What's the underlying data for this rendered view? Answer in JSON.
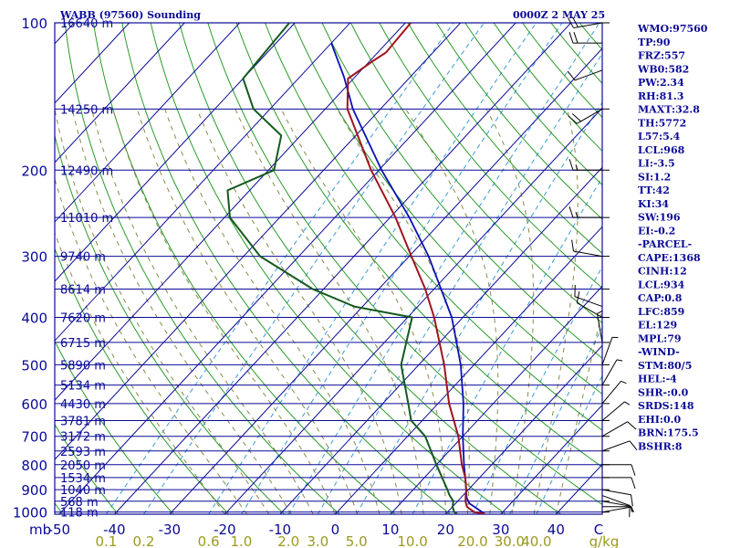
{
  "header": {
    "station": "WABB (97560) Sounding",
    "time": "0000Z  2 MAY 25"
  },
  "indices": [
    "WMO:97560",
    "TP:90",
    "FRZ:557",
    "WB0:582",
    "PW:2.34",
    "RH:81.3",
    "MAXT:32.8",
    "TH:5772",
    "L57:5.4",
    "LCL:968",
    "LI:-3.5",
    "SI:1.2",
    "TT:42",
    "KI:34",
    "SW:196",
    "EI:-0.2",
    "-PARCEL-",
    "CAPE:1368",
    "CINH:12",
    "LCL:934",
    "CAP:0.8",
    "LFC:859",
    "EL:129",
    "MPL:79",
    "-WIND-",
    "STM:80/5",
    "HEL:-4",
    "SHR-:0.0",
    "SRDS:148",
    "EHI:0.0",
    "BRN:175.5",
    "BSHR:8"
  ],
  "colors": {
    "text": "#0a0a96",
    "isobar": "#0a0a96",
    "isotherm": "#0a0a96",
    "dry_adiabat": "#2a9a2a",
    "moist_adiabat": "#8a8a4a",
    "mixing_ratio": "#3a9ad8",
    "temperature": "#a0141e",
    "dewpoint": "#145a1e",
    "parcel": "#0a10b4",
    "wind": "#000000",
    "mixing_label": "#9a9a20"
  },
  "chart_data": {
    "type": "skew-t",
    "pressure_axis_unit": "mb",
    "temperature_axis_unit": "C",
    "mixing_ratio_unit": "g/kg",
    "pressure_ticks": [
      100,
      200,
      300,
      400,
      500,
      600,
      700,
      800,
      900,
      1000
    ],
    "temperature_ticks": [
      -50,
      -40,
      -30,
      -20,
      -10,
      0,
      10,
      20,
      30,
      40
    ],
    "pressure_range_mb": [
      1010,
      100
    ],
    "mixing_ratio_ticks": [
      "0.1",
      "0.2",
      "0.6",
      "1.0",
      "2.0",
      "3.0",
      "5.0",
      "10.0",
      "20.0",
      "30.0",
      "40.0"
    ],
    "height_labels": [
      {
        "p": 100,
        "text": "16640 m"
      },
      {
        "p": 150,
        "text": "14250 m"
      },
      {
        "p": 200,
        "text": "12490 m"
      },
      {
        "p": 250,
        "text": "11010 m"
      },
      {
        "p": 300,
        "text": "9740 m"
      },
      {
        "p": 350,
        "text": "8614 m"
      },
      {
        "p": 400,
        "text": "7620 m"
      },
      {
        "p": 450,
        "text": "6715 m"
      },
      {
        "p": 500,
        "text": "5890 m"
      },
      {
        "p": 550,
        "text": "5134 m"
      },
      {
        "p": 600,
        "text": "4430 m"
      },
      {
        "p": 650,
        "text": "3781 m"
      },
      {
        "p": 700,
        "text": "3172 m"
      },
      {
        "p": 750,
        "text": "2593 m"
      },
      {
        "p": 800,
        "text": "2050 m"
      },
      {
        "p": 850,
        "text": "1534 m"
      },
      {
        "p": 900,
        "text": "1040 m"
      },
      {
        "p": 950,
        "text": "568 m"
      },
      {
        "p": 1000,
        "text": "118 m"
      }
    ],
    "temperature": [
      {
        "p": 1008,
        "t": 27.0
      },
      {
        "p": 1000,
        "t": 24.8
      },
      {
        "p": 975,
        "t": 22.6
      },
      {
        "p": 950,
        "t": 21.4
      },
      {
        "p": 925,
        "t": 20.5
      },
      {
        "p": 900,
        "t": 19.6
      },
      {
        "p": 850,
        "t": 17.4
      },
      {
        "p": 800,
        "t": 14.6
      },
      {
        "p": 700,
        "t": 9.2
      },
      {
        "p": 600,
        "t": 2.0
      },
      {
        "p": 500,
        "t": -5.4
      },
      {
        "p": 400,
        "t": -15.2
      },
      {
        "p": 350,
        "t": -21.6
      },
      {
        "p": 300,
        "t": -29.6
      },
      {
        "p": 250,
        "t": -39.0
      },
      {
        "p": 200,
        "t": -51.4
      },
      {
        "p": 150,
        "t": -66.0
      },
      {
        "p": 130,
        "t": -71.0
      },
      {
        "p": 120,
        "t": -69.5
      },
      {
        "p": 115,
        "t": -68.5
      },
      {
        "p": 100,
        "t": -69.0
      }
    ],
    "dewpoint": [
      {
        "p": 1008,
        "t": 22.0
      },
      {
        "p": 1000,
        "t": 21.2
      },
      {
        "p": 975,
        "t": 20.0
      },
      {
        "p": 950,
        "t": 19.2
      },
      {
        "p": 925,
        "t": 17.6
      },
      {
        "p": 900,
        "t": 16.2
      },
      {
        "p": 850,
        "t": 13.2
      },
      {
        "p": 800,
        "t": 10.0
      },
      {
        "p": 700,
        "t": 3.2
      },
      {
        "p": 650,
        "t": -2.0
      },
      {
        "p": 600,
        "t": -5.4
      },
      {
        "p": 500,
        "t": -13.2
      },
      {
        "p": 400,
        "t": -19.2
      },
      {
        "p": 380,
        "t": -31.5
      },
      {
        "p": 350,
        "t": -42.0
      },
      {
        "p": 300,
        "t": -57.0
      },
      {
        "p": 250,
        "t": -69.0
      },
      {
        "p": 220,
        "t": -74.0
      },
      {
        "p": 200,
        "t": -69.0
      },
      {
        "p": 170,
        "t": -73.5
      },
      {
        "p": 150,
        "t": -83.0
      },
      {
        "p": 130,
        "t": -90.0
      },
      {
        "p": 100,
        "t": -91.0
      }
    ],
    "parcel": [
      {
        "p": 1008,
        "t": 27.0
      },
      {
        "p": 960,
        "t": 22.5
      },
      {
        "p": 934,
        "t": 21.0
      },
      {
        "p": 900,
        "t": 19.6
      },
      {
        "p": 850,
        "t": 17.4
      },
      {
        "p": 800,
        "t": 15.0
      },
      {
        "p": 700,
        "t": 10.0
      },
      {
        "p": 600,
        "t": 4.6
      },
      {
        "p": 500,
        "t": -2.4
      },
      {
        "p": 400,
        "t": -12.0
      },
      {
        "p": 300,
        "t": -26.5
      },
      {
        "p": 250,
        "t": -36.5
      },
      {
        "p": 200,
        "t": -49.5
      },
      {
        "p": 150,
        "t": -65.0
      },
      {
        "p": 129,
        "t": -72.0
      },
      {
        "p": 110,
        "t": -80.0
      }
    ],
    "winds": [
      {
        "p": 1000,
        "dir": 80,
        "spd": 5
      },
      {
        "p": 975,
        "dir": 90,
        "spd": 5
      },
      {
        "p": 950,
        "dir": 100,
        "spd": 5
      },
      {
        "p": 925,
        "dir": 110,
        "spd": 10
      },
      {
        "p": 900,
        "dir": 100,
        "spd": 10
      },
      {
        "p": 850,
        "dir": 90,
        "spd": 10
      },
      {
        "p": 800,
        "dir": 90,
        "spd": 10
      },
      {
        "p": 750,
        "dir": 70,
        "spd": 10
      },
      {
        "p": 700,
        "dir": 60,
        "spd": 10
      },
      {
        "p": 650,
        "dir": 50,
        "spd": 5
      },
      {
        "p": 600,
        "dir": 40,
        "spd": 5
      },
      {
        "p": 550,
        "dir": 30,
        "spd": 5
      },
      {
        "p": 500,
        "dir": 20,
        "spd": 5
      },
      {
        "p": 450,
        "dir": 350,
        "spd": 5
      },
      {
        "p": 400,
        "dir": 300,
        "spd": 10
      },
      {
        "p": 380,
        "dir": 290,
        "spd": 10
      },
      {
        "p": 300,
        "dir": 280,
        "spd": 10
      },
      {
        "p": 250,
        "dir": 270,
        "spd": 15
      },
      {
        "p": 200,
        "dir": 270,
        "spd": 15
      },
      {
        "p": 150,
        "dir": 240,
        "spd": 20
      },
      {
        "p": 125,
        "dir": 250,
        "spd": 10
      },
      {
        "p": 100,
        "dir": 260,
        "spd": 20
      },
      {
        "p": 110,
        "dir": 270,
        "spd": 20
      }
    ]
  }
}
